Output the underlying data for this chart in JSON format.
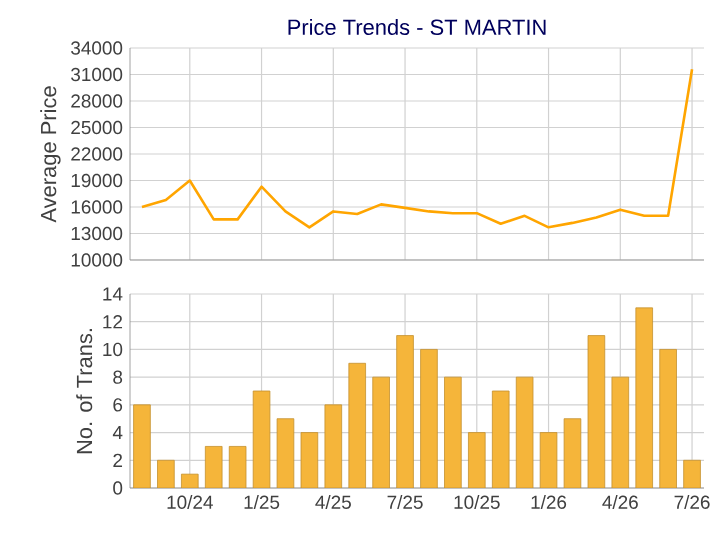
{
  "chart_data": [
    {
      "type": "line",
      "title": "Price Trends - ST MARTIN",
      "ylabel": "Average Price",
      "categories": [
        null,
        null,
        null,
        null,
        null,
        null,
        null,
        null,
        null,
        null,
        null,
        null,
        null,
        null,
        null,
        null,
        null,
        null,
        null,
        null,
        null,
        null,
        null,
        null
      ],
      "series": [
        {
          "color": "#ffa500",
          "values": [
            16000,
            16800,
            19000,
            14600,
            14600,
            18300,
            15500,
            13700,
            15500,
            15200,
            16300,
            15900,
            15500,
            15300,
            15300,
            14100,
            15000,
            13700,
            14200,
            14800,
            15700,
            15000,
            15000,
            31600
          ]
        }
      ],
      "ylim": [
        10000,
        34000
      ],
      "yticks": [
        10000,
        13000,
        16000,
        19000,
        22000,
        25000,
        28000,
        31000,
        34000
      ],
      "grid": true,
      "marker": "none",
      "line_style": "solid",
      "tick_labels": "y"
    },
    {
      "type": "bar",
      "ylabel": "No. of Trans.",
      "categories": [
        null,
        null,
        "10/24",
        null,
        null,
        "1/25",
        null,
        null,
        "4/25",
        null,
        null,
        "7/25",
        null,
        null,
        "10/25",
        null,
        null,
        "1/26",
        null,
        null,
        "4/26",
        null,
        null,
        "7/26"
      ],
      "series": [
        {
          "color": "#f5b53a",
          "values": [
            6,
            2,
            1,
            3,
            3,
            7,
            5,
            4,
            6,
            9,
            8,
            11,
            10,
            8,
            4,
            7,
            8,
            4,
            5,
            11,
            8,
            13,
            10,
            2
          ]
        }
      ],
      "ylim": [
        0,
        14
      ],
      "yticks": [
        0,
        2,
        4,
        6,
        8,
        10,
        12,
        14
      ],
      "grid": true
    }
  ]
}
